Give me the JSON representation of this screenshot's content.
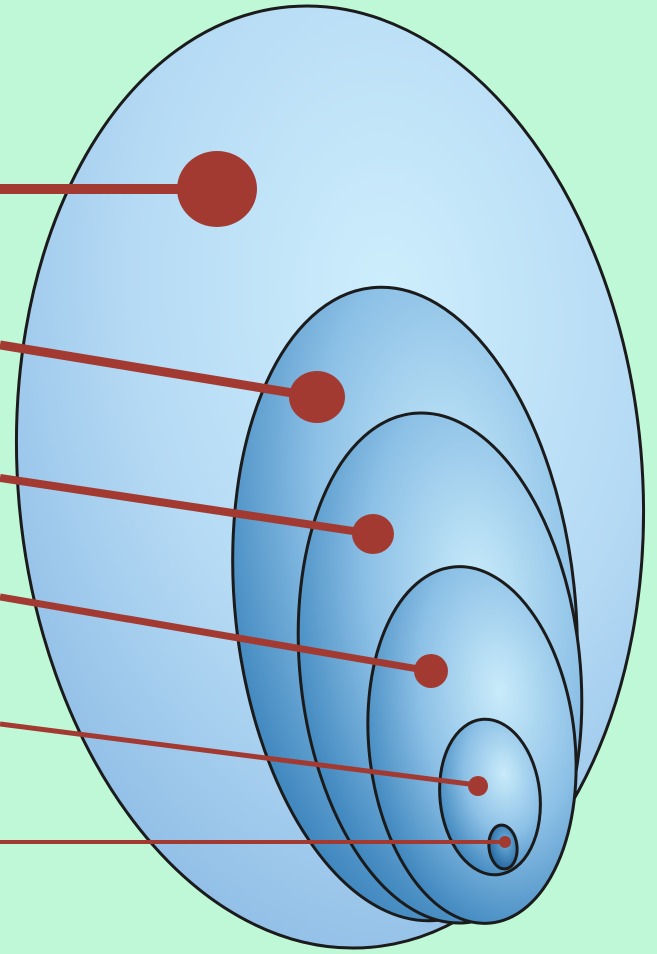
{
  "colors": {
    "background": "#bff8d6",
    "ellipse_light": "#cdeefc",
    "ellipse_mid": "#9cc8ec",
    "ellipse_dark": "#2d78b4",
    "outline": "#1b1b1b",
    "pointer": "#a23a32"
  },
  "diagram": {
    "type": "nested ellipses with leader lines",
    "layers": 6,
    "labels": []
  }
}
